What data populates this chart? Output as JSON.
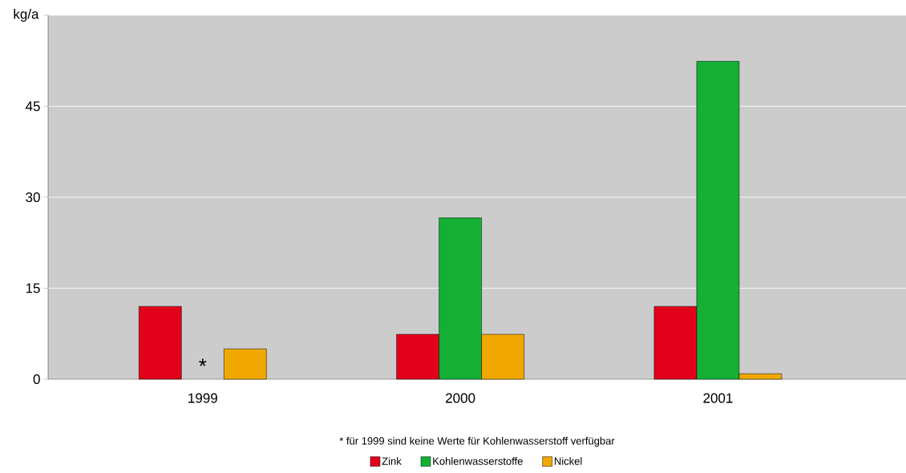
{
  "chart_data": {
    "type": "bar",
    "ylabel": "kg/a",
    "categories": [
      "1999",
      "2000",
      "2001"
    ],
    "series": [
      {
        "name": "Zink",
        "color": "#e2001a",
        "values": [
          12,
          7.4,
          12
        ]
      },
      {
        "name": "Kohlenwasserstoffe",
        "color": "#13b035",
        "values": [
          null,
          26.6,
          52.4
        ]
      },
      {
        "name": "Nickel",
        "color": "#f0a800",
        "values": [
          5,
          7.4,
          0.9
        ]
      }
    ],
    "ylim": [
      0,
      60
    ],
    "yticks": [
      0,
      15,
      30,
      45,
      {
        "value": 60,
        "label": null
      }
    ],
    "grid": "y",
    "legend": "bottom",
    "annotations": [
      "*",
      "* für 1999 sind keine Werte für Kohlenwasserstoff verfügbar"
    ]
  }
}
